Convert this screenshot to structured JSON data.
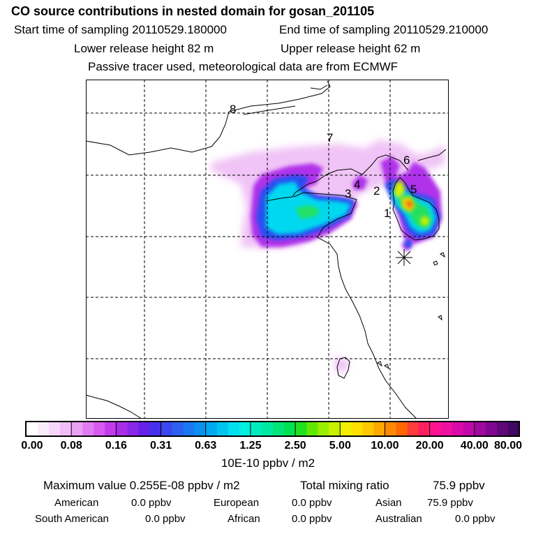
{
  "header": {
    "title": "CO  source contributions in nested domain for gosan_201105",
    "start_label": "Start time of sampling 20110529.180000",
    "end_label": "End time of sampling 20110529.210000",
    "lower_label": "Lower release height   82 m",
    "upper_label": "Upper release height   62 m",
    "note": "Passive tracer used, meteorological data are from ECMWF"
  },
  "chart_data": {
    "type": "heatmap",
    "title": "CO  source contributions in nested domain for gosan_201105",
    "colorbar": {
      "ticks": [
        "0.00",
        "0.08",
        "0.16",
        "0.31",
        "0.63",
        "1.25",
        "2.50",
        "5.00",
        "10.00",
        "20.00",
        "40.00",
        "80.00"
      ],
      "unit": "10E-10 ppbv / m2",
      "colors": [
        "#ffffff",
        "#fbecfd",
        "#f6d6fb",
        "#f0bdf8",
        "#e9a0f5",
        "#e07cf2",
        "#d65aef",
        "#c53bec",
        "#a82eea",
        "#8a28ea",
        "#6622ea",
        "#4630ec",
        "#3a48f0",
        "#2d60f2",
        "#1a78f2",
        "#0c90f0",
        "#00a8f0",
        "#00c4f0",
        "#00e0f0",
        "#00f0e0",
        "#00ecc0",
        "#00e8a0",
        "#00e47a",
        "#00e050",
        "#20e020",
        "#60e800",
        "#98ee00",
        "#c8f000",
        "#f0f000",
        "#ffe000",
        "#ffc800",
        "#ffa800",
        "#ff8800",
        "#ff6800",
        "#ff3c3c",
        "#ff2060",
        "#ff1490",
        "#ee10a0",
        "#d80aa8",
        "#c008a8",
        "#a008a0",
        "#800890",
        "#600878",
        "#400860"
      ]
    },
    "region_labels": [
      "1",
      "2",
      "3",
      "4",
      "5",
      "6",
      "7",
      "8"
    ],
    "receptor": "gosan"
  },
  "summary": {
    "max_label": "Maximum value  0.255E-08 ppbv / m2",
    "total_label": "Total mixing ratio",
    "total_value": "75.9 ppbv"
  },
  "sources": [
    {
      "name": "American",
      "value": "0.0 ppbv"
    },
    {
      "name": "European",
      "value": "0.0 ppbv"
    },
    {
      "name": "Asian",
      "value": "75.9 ppbv"
    },
    {
      "name": "South American",
      "value": "0.0 ppbv"
    },
    {
      "name": "African",
      "value": "0.0 ppbv"
    },
    {
      "name": "Australian",
      "value": "0.0 ppbv"
    }
  ]
}
